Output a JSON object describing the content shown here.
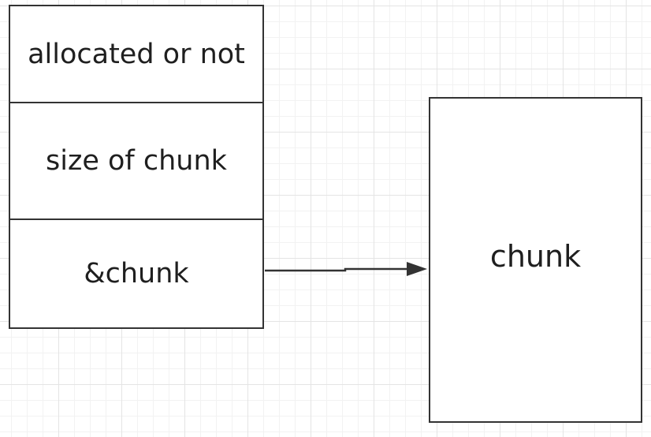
{
  "struct": {
    "fields": [
      {
        "label": "allocated or not"
      },
      {
        "label": "size of chunk"
      },
      {
        "label": "&chunk"
      }
    ]
  },
  "chunk": {
    "label": "chunk"
  },
  "colors": {
    "line": "#333333",
    "grid": "#e4e4e4",
    "background": "#ffffff"
  }
}
